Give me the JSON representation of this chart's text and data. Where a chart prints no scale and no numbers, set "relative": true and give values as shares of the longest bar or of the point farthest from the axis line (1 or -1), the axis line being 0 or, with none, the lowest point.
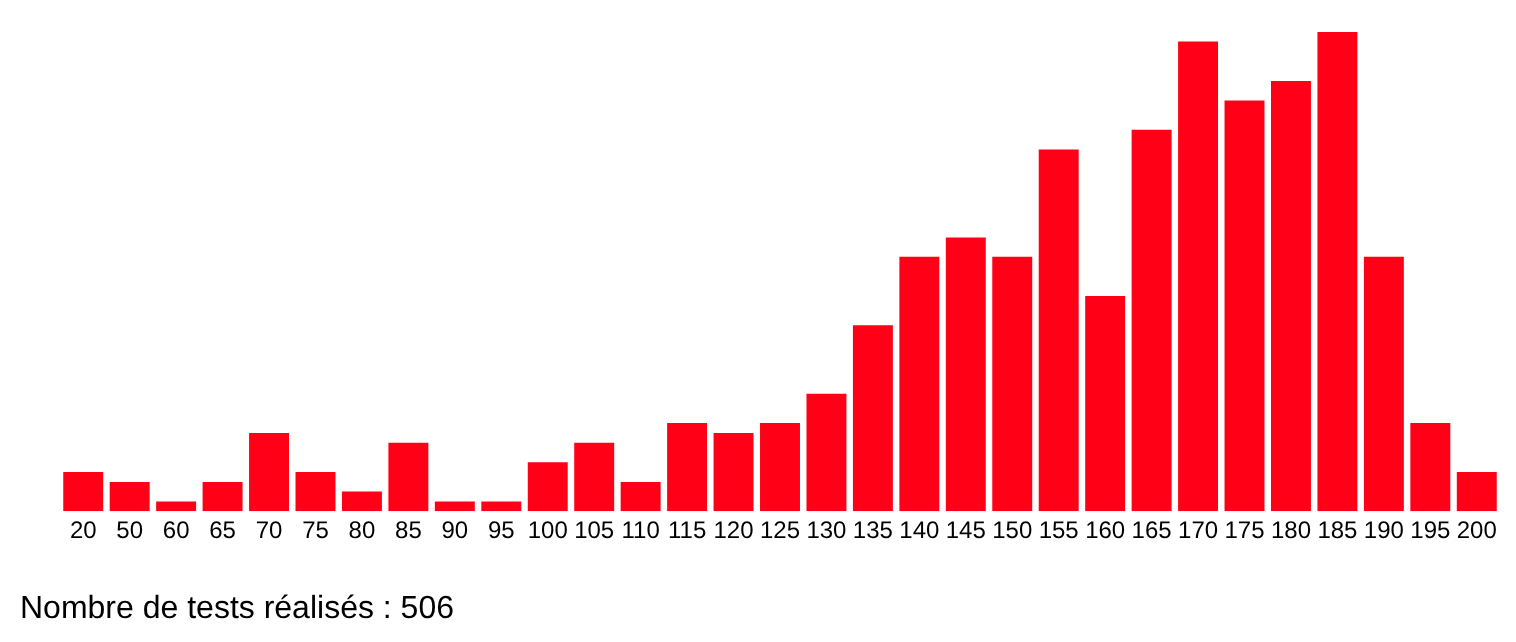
{
  "chart_data": {
    "type": "bar",
    "relative": true,
    "color": "#ff0016",
    "grid": false,
    "legend": false,
    "categories": [
      "20",
      "50",
      "60",
      "65",
      "70",
      "75",
      "80",
      "85",
      "90",
      "95",
      "100",
      "105",
      "110",
      "115",
      "120",
      "125",
      "130",
      "135",
      "140",
      "145",
      "150",
      "155",
      "160",
      "165",
      "170",
      "175",
      "180",
      "185",
      "190",
      "195",
      "200"
    ],
    "values": [
      0.082,
      0.061,
      0.02,
      0.061,
      0.163,
      0.082,
      0.041,
      0.143,
      0.02,
      0.02,
      0.102,
      0.143,
      0.061,
      0.184,
      0.163,
      0.184,
      0.245,
      0.388,
      0.531,
      0.571,
      0.531,
      0.755,
      0.449,
      0.796,
      0.98,
      0.857,
      0.898,
      1,
      0.531,
      0.184,
      0.082
    ],
    "annotations": [
      "Nombre de tests réalisés : 506"
    ]
  }
}
